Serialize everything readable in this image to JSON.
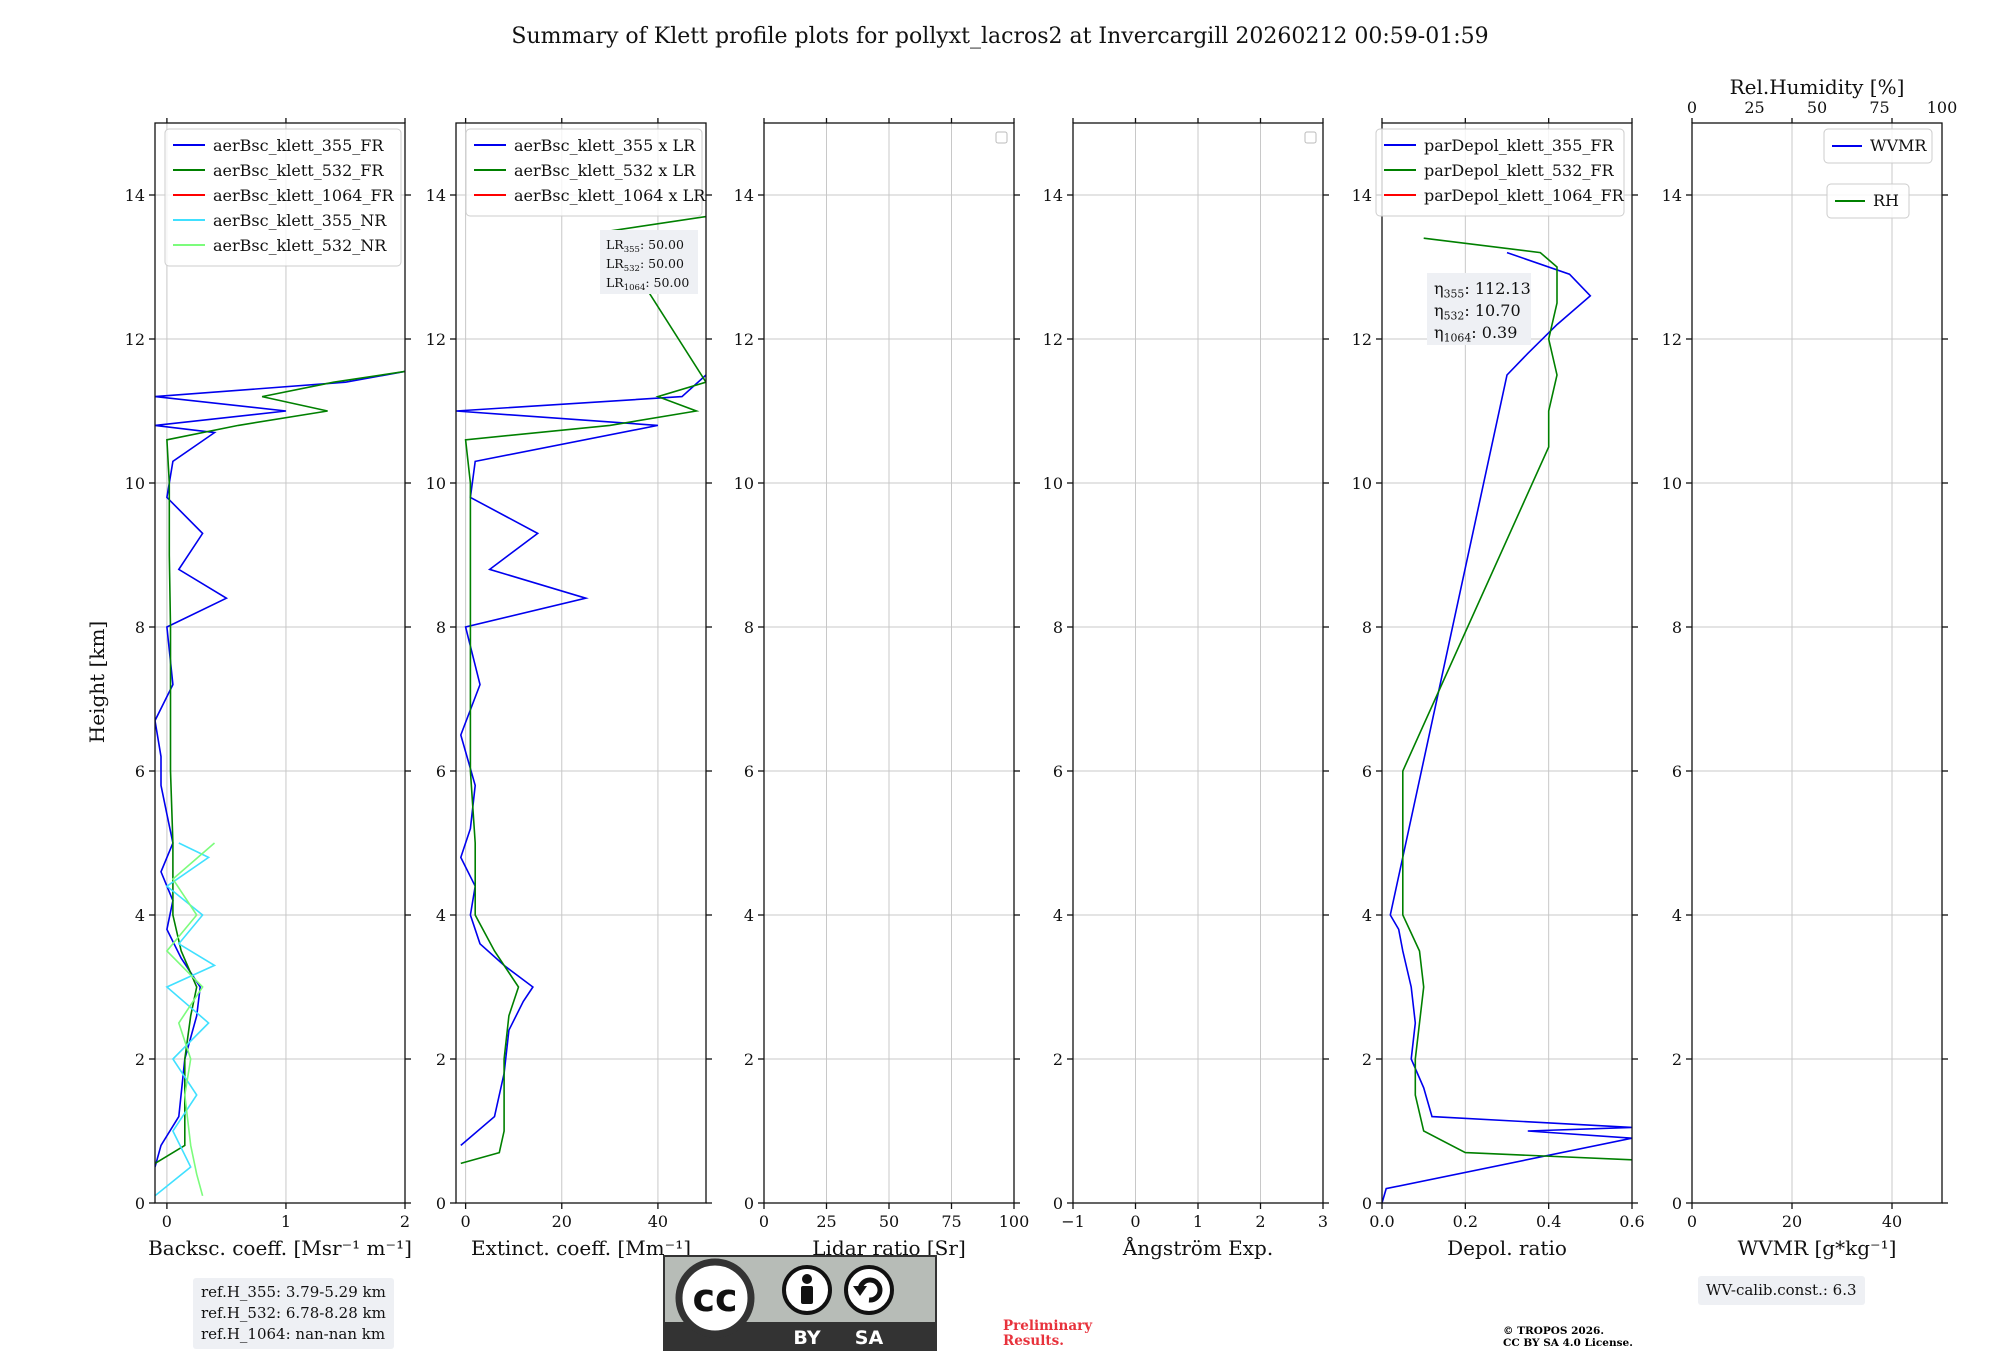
{
  "figure": {
    "title": "Summary of Klett profile plots for pollyxt_lacros2 at Invercargill 20260212 00:59-01:59",
    "ylabel": "Height [km]",
    "ylim": [
      0,
      15
    ],
    "yticks": [
      0,
      2,
      4,
      6,
      8,
      10,
      12,
      14
    ]
  },
  "chart_data": [
    {
      "id": "bsc",
      "type": "line",
      "xlabel": "Backsc. coeff. [Msr⁻¹ m⁻¹]",
      "xlim": [
        -0.1,
        2
      ],
      "xticks": [
        0,
        1,
        2
      ],
      "legend": [
        "aerBsc_klett_355_FR",
        "aerBsc_klett_532_FR",
        "aerBsc_klett_1064_FR",
        "aerBsc_klett_355_NR",
        "aerBsc_klett_532_NR"
      ],
      "colors": [
        "#0000ee",
        "#008000",
        "#ff0000",
        "#40e0ff",
        "#7cfc7c"
      ],
      "series": [
        {
          "name": "aerBsc_klett_355_FR",
          "y": [
            0.5,
            0.8,
            1.2,
            2.0,
            2.6,
            3.0,
            3.4,
            3.8,
            4.2,
            4.6,
            5.0,
            5.4,
            5.8,
            6.2,
            6.7,
            7.2,
            8.0,
            8.4,
            8.8,
            9.3,
            9.8,
            10.3,
            10.7,
            10.8,
            11.0,
            11.2,
            11.4,
            11.55
          ],
          "x": [
            -0.1,
            -0.05,
            0.1,
            0.15,
            0.25,
            0.28,
            0.12,
            0.0,
            0.05,
            -0.05,
            0.05,
            0.0,
            -0.05,
            -0.05,
            -0.1,
            0.05,
            0.0,
            0.5,
            0.1,
            0.3,
            0.0,
            0.05,
            0.4,
            -0.1,
            1.0,
            -0.1,
            1.5,
            2.0
          ]
        },
        {
          "name": "aerBsc_klett_532_FR",
          "y": [
            0.55,
            0.8,
            1.2,
            2.0,
            2.6,
            3.0,
            3.5,
            4.0,
            5.0,
            6.0,
            7.0,
            8.0,
            9.0,
            10.0,
            10.6,
            10.8,
            11.0,
            11.2,
            11.4,
            11.55
          ],
          "x": [
            -0.1,
            0.15,
            0.15,
            0.15,
            0.2,
            0.25,
            0.12,
            0.05,
            0.05,
            0.03,
            0.03,
            0.03,
            0.02,
            0.02,
            0.0,
            0.6,
            1.35,
            0.8,
            1.4,
            2.0
          ]
        },
        {
          "name": "aerBsc_klett_355_NR",
          "y": [
            0.1,
            0.5,
            1.0,
            1.5,
            2.0,
            2.5,
            3.0,
            3.3,
            3.6,
            4.0,
            4.4,
            4.8,
            5.0
          ],
          "x": [
            -0.1,
            0.2,
            0.05,
            0.25,
            0.05,
            0.35,
            0.0,
            0.4,
            0.1,
            0.3,
            0.0,
            0.35,
            0.1
          ]
        },
        {
          "name": "aerBsc_klett_532_NR",
          "y": [
            0.1,
            0.4,
            0.8,
            1.5,
            2.0,
            2.5,
            3.0,
            3.5,
            4.0,
            4.5,
            5.0
          ],
          "x": [
            0.3,
            0.25,
            0.2,
            0.15,
            0.2,
            0.1,
            0.3,
            0.0,
            0.25,
            0.05,
            0.4
          ]
        }
      ]
    },
    {
      "id": "ext",
      "type": "line",
      "xlabel": "Extinct. coeff. [Mm⁻¹]",
      "xlim": [
        -2,
        50
      ],
      "xticks": [
        0,
        20,
        40
      ],
      "legend": [
        "aerBsc_klett_355 x LR",
        "aerBsc_klett_532 x LR",
        "aerBsc_klett_1064 x LR"
      ],
      "colors": [
        "#0000ee",
        "#008000",
        "#ff0000"
      ],
      "annotation": [
        "LR355: 50.00",
        "LR532: 50.00",
        "LR1064: 50.00"
      ],
      "series": [
        {
          "name": "aerBsc_klett_355 x LR",
          "y": [
            0.8,
            1.2,
            1.8,
            2.4,
            2.8,
            3.0,
            3.3,
            3.6,
            4.0,
            4.4,
            4.8,
            5.2,
            5.8,
            6.5,
            7.2,
            8.0,
            8.4,
            8.8,
            9.3,
            9.8,
            10.3,
            10.8,
            11.0,
            11.2,
            11.5
          ],
          "x": [
            -1,
            6,
            8,
            9,
            12,
            14,
            8,
            3,
            1,
            2,
            -1,
            1,
            2,
            -1,
            3,
            0,
            25,
            5,
            15,
            1,
            2,
            40,
            -2,
            45,
            50
          ]
        },
        {
          "name": "aerBsc_klett_532 x LR",
          "y": [
            0.55,
            0.7,
            1.0,
            2.0,
            2.6,
            3.0,
            3.5,
            4.0,
            5.0,
            6.0,
            7.0,
            8.0,
            9.0,
            10.0,
            10.6,
            10.8,
            11.0,
            11.2,
            11.4,
            13.5,
            13.7
          ],
          "x": [
            -1,
            7,
            8,
            8,
            9,
            11,
            6,
            2,
            2,
            1,
            1,
            1,
            1,
            1,
            0,
            30,
            48,
            40,
            50,
            30,
            50
          ]
        }
      ]
    },
    {
      "id": "lr",
      "type": "line",
      "xlabel": "Lidar ratio [Sr]",
      "xlim": [
        0,
        100
      ],
      "xticks": [
        0,
        25,
        50,
        75,
        100
      ],
      "series": []
    },
    {
      "id": "ang",
      "type": "line",
      "xlabel": "Ångström Exp.",
      "xlim": [
        -1,
        3
      ],
      "xticks": [
        -1,
        0,
        1,
        2,
        3
      ],
      "series": []
    },
    {
      "id": "dep",
      "type": "line",
      "xlabel": "Depol. ratio",
      "xlim": [
        0,
        0.6
      ],
      "xticks": [
        0.0,
        0.2,
        0.4,
        0.6
      ],
      "legend": [
        "parDepol_klett_355_FR",
        "parDepol_klett_532_FR",
        "parDepol_klett_1064_FR"
      ],
      "colors": [
        "#0000ee",
        "#008000",
        "#ff0000"
      ],
      "annotation": [
        "η355: 112.13",
        "η532: 10.70",
        "η1064: 0.39"
      ],
      "series": [
        {
          "name": "parDepol_klett_355_FR",
          "y": [
            0.0,
            0.2,
            0.9,
            1.0,
            1.05,
            1.2,
            1.6,
            2.0,
            2.5,
            3.0,
            3.5,
            3.8,
            4.0,
            11.5,
            11.8,
            12.2,
            12.6,
            12.9,
            13.2
          ],
          "x": [
            0.0,
            0.01,
            0.6,
            0.35,
            0.6,
            0.12,
            0.1,
            0.07,
            0.08,
            0.07,
            0.05,
            0.04,
            0.02,
            0.3,
            0.35,
            0.42,
            0.5,
            0.45,
            0.3
          ]
        },
        {
          "name": "parDepol_klett_532_FR",
          "y": [
            0.6,
            0.7,
            1.0,
            1.5,
            2.0,
            2.5,
            3.0,
            3.5,
            4.0,
            5.0,
            6.0,
            10.5,
            11.0,
            11.5,
            12.0,
            12.5,
            13.0,
            13.2,
            13.4
          ],
          "x": [
            0.6,
            0.2,
            0.1,
            0.08,
            0.08,
            0.09,
            0.1,
            0.09,
            0.05,
            0.05,
            0.05,
            0.4,
            0.4,
            0.42,
            0.4,
            0.42,
            0.42,
            0.38,
            0.1
          ]
        }
      ]
    },
    {
      "id": "wv",
      "type": "line",
      "xlabel": "WVMR [g*kg⁻¹]",
      "xlim": [
        0,
        50
      ],
      "xticks": [
        0,
        20,
        40
      ],
      "top_xlabel": "Rel.Humidity [%]",
      "top_xlim": [
        0,
        100
      ],
      "top_xticks": [
        0,
        25,
        50,
        75,
        100
      ],
      "legend": [
        "WVMR",
        "RH"
      ],
      "colors": [
        "#0000ee",
        "#008000"
      ],
      "series": []
    }
  ],
  "footer": {
    "ref_lines": [
      "ref.H_355: 3.79-5.29 km",
      "ref.H_532: 6.78-8.28 km",
      "ref.H_1064: nan-nan km"
    ],
    "wv_calib": "WV-calib.const.: 6.3",
    "preliminary": [
      "Preliminary",
      "Results."
    ],
    "copyright": [
      "© TROPOS 2026.",
      "CC BY SA 4.0 License."
    ],
    "license_badge": {
      "by": "BY",
      "sa": "SA",
      "cc": "cc"
    }
  }
}
